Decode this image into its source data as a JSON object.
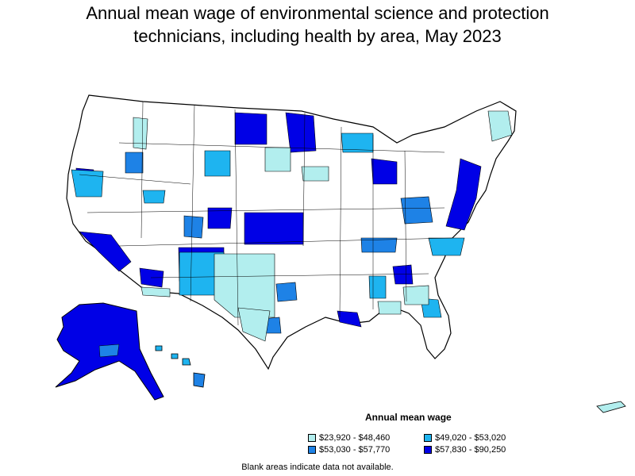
{
  "title": {
    "line1": "Annual mean wage of environmental science and protection",
    "line2": "technicians, including health by area, May 2023"
  },
  "legend": {
    "title": "Annual mean wage",
    "items": [
      {
        "label": "$23,920 - $48,460",
        "color": "#b2eeee"
      },
      {
        "label": "$49,020 - $53,020",
        "color": "#1eb4f0"
      },
      {
        "label": "$53,030 - $57,770",
        "color": "#1e82e6"
      },
      {
        "label": "$57,830 - $90,250",
        "color": "#0000e6"
      }
    ]
  },
  "footnote": "Blank areas indicate data not available."
}
